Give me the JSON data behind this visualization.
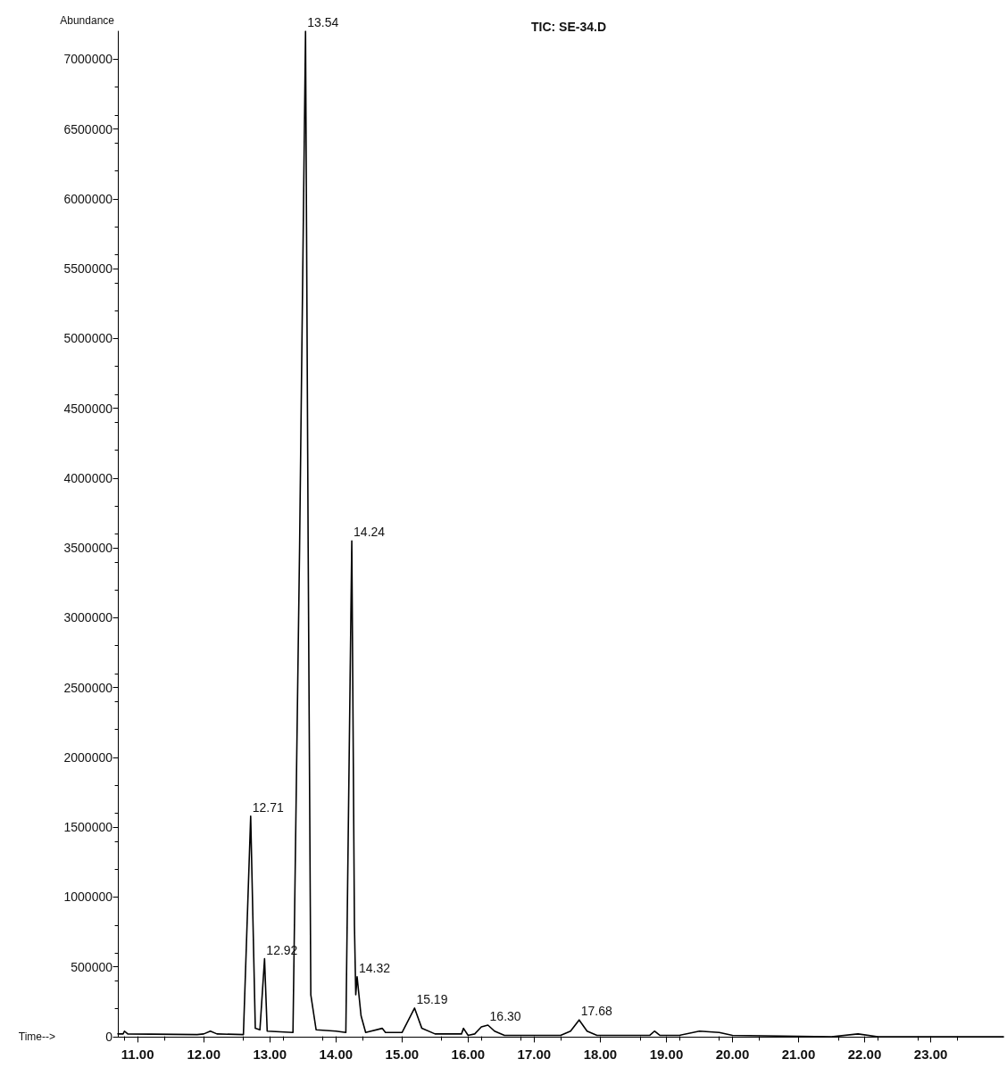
{
  "chart_data": {
    "type": "line",
    "title": "TIC: SE-34.D",
    "xlabel": "Time-->",
    "ylabel": "Abundance",
    "xlim": [
      10.7,
      24.1
    ],
    "xticks": [
      {
        "value": 11,
        "label": "11.00"
      },
      {
        "value": 12,
        "label": "12.00"
      },
      {
        "value": 13,
        "label": "13.00"
      },
      {
        "value": 14,
        "label": "14.00"
      },
      {
        "value": 15,
        "label": "15.00"
      },
      {
        "value": 16,
        "label": "16.00"
      },
      {
        "value": 17,
        "label": "17.00"
      },
      {
        "value": 18,
        "label": "18.00"
      },
      {
        "value": 19,
        "label": "19.00"
      },
      {
        "value": 20,
        "label": "20.00"
      },
      {
        "value": 21,
        "label": "21.00"
      },
      {
        "value": 22,
        "label": "22.00"
      },
      {
        "value": 23,
        "label": "23.00"
      }
    ],
    "ylim": [
      0,
      7200000
    ],
    "yticks": [
      0,
      500000,
      1000000,
      1500000,
      2000000,
      2500000,
      3000000,
      3500000,
      4000000,
      4500000,
      5000000,
      5500000,
      6000000,
      6500000,
      7000000
    ],
    "x": [
      10.7,
      10.78,
      10.8,
      10.85,
      11.9,
      12.0,
      12.1,
      12.2,
      12.6,
      12.71,
      12.78,
      12.85,
      12.92,
      12.96,
      13.35,
      13.45,
      13.54,
      13.58,
      13.62,
      13.7,
      14.0,
      14.15,
      14.24,
      14.28,
      14.3,
      14.32,
      14.38,
      14.45,
      14.7,
      14.75,
      15.0,
      15.19,
      15.3,
      15.5,
      15.9,
      15.93,
      16.0,
      16.1,
      16.2,
      16.3,
      16.4,
      16.55,
      17.4,
      17.55,
      17.68,
      17.8,
      17.95,
      18.75,
      18.82,
      18.9,
      19.2,
      19.5,
      19.8,
      20.0,
      21.5,
      21.9,
      22.2,
      24.1
    ],
    "series": [
      {
        "color": "#000000",
        "values": [
          20000,
          20000,
          40000,
          20000,
          15000,
          20000,
          40000,
          20000,
          15000,
          1580000,
          60000,
          50000,
          558000,
          40000,
          30000,
          3500000,
          7200000,
          3500000,
          300000,
          50000,
          40000,
          30000,
          3550000,
          800000,
          300000,
          430000,
          150000,
          30000,
          60000,
          30000,
          30000,
          205000,
          60000,
          20000,
          20000,
          60000,
          10000,
          20000,
          70000,
          83000,
          40000,
          10000,
          10000,
          40000,
          120000,
          40000,
          10000,
          10000,
          40000,
          10000,
          10000,
          40000,
          30000,
          10000,
          0,
          20000,
          0,
          0
        ]
      }
    ],
    "annotations": [
      {
        "text": "12.71",
        "x": 12.71,
        "y": 1580000
      },
      {
        "text": "12.92",
        "x": 12.92,
        "y": 558000
      },
      {
        "text": "13.54",
        "x": 13.54,
        "y": 7200000
      },
      {
        "text": "14.24",
        "x": 14.24,
        "y": 3550000
      },
      {
        "text": "14.32",
        "x": 14.32,
        "y": 430000
      },
      {
        "text": "15.19",
        "x": 15.19,
        "y": 205000
      },
      {
        "text": "16.30",
        "x": 16.3,
        "y": 83000
      },
      {
        "text": "17.68",
        "x": 17.68,
        "y": 120000
      }
    ],
    "grid": false,
    "marker": "none",
    "line_style": "solid"
  }
}
